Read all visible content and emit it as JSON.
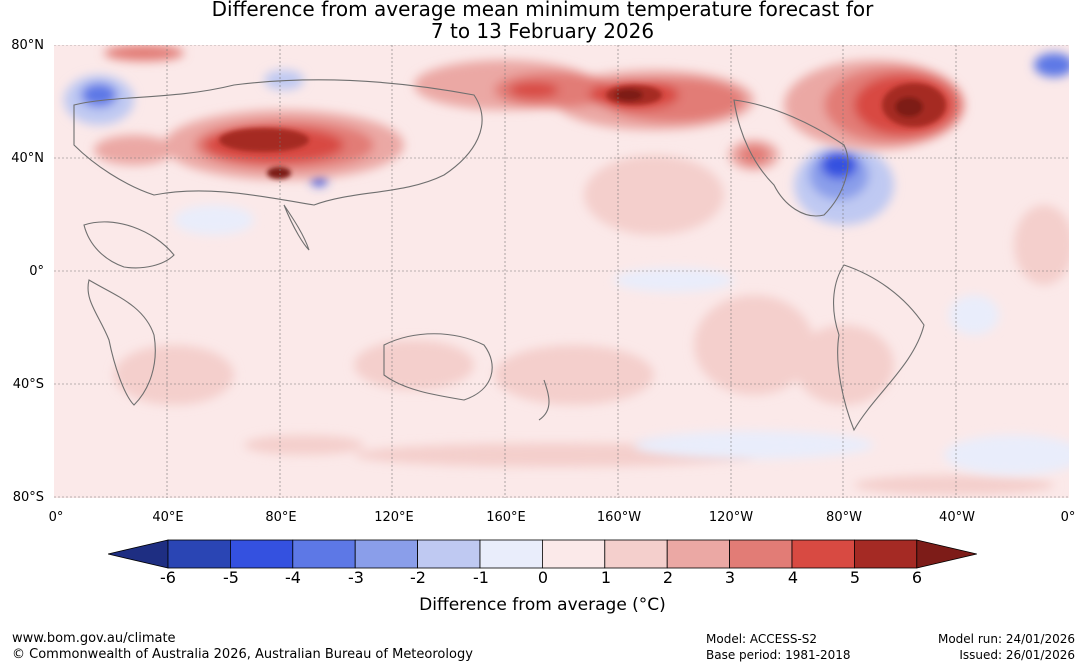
{
  "title": {
    "line1": "Difference from average mean minimum temperature forecast for",
    "line2": "7 to 13 February 2026"
  },
  "latitude_labels": [
    "80°N",
    "40°N",
    "0°",
    "40°S",
    "80°S"
  ],
  "longitude_labels": [
    "0°",
    "40°E",
    "80°E",
    "120°E",
    "160°E",
    "160°W",
    "120°W",
    "80°W",
    "40°W",
    "0°"
  ],
  "colorbar": {
    "ticks": [
      "-6",
      "-5",
      "-4",
      "-3",
      "-2",
      "-1",
      "0",
      "1",
      "2",
      "3",
      "4",
      "5",
      "6"
    ],
    "label": "Difference from average (°C)",
    "colors": [
      "#1e2e82",
      "#2a45b4",
      "#3451e0",
      "#5d78e6",
      "#8a9eea",
      "#bfc9f2",
      "#e9edfb",
      "#fbe9e9",
      "#f4cfcc",
      "#eba8a4",
      "#e27c76",
      "#d84a42",
      "#a52a24",
      "#7d1c18"
    ]
  },
  "footer": {
    "website": "www.bom.gov.au/climate",
    "copyright": "© Commonwealth of Australia 2026, Australian Bureau of Meteorology",
    "model": "Model: ACCESS-S2",
    "base_period": "Base period: 1981-2018",
    "model_run": "Model run: 24/01/2026",
    "issued": "Issued: 26/01/2026"
  }
}
